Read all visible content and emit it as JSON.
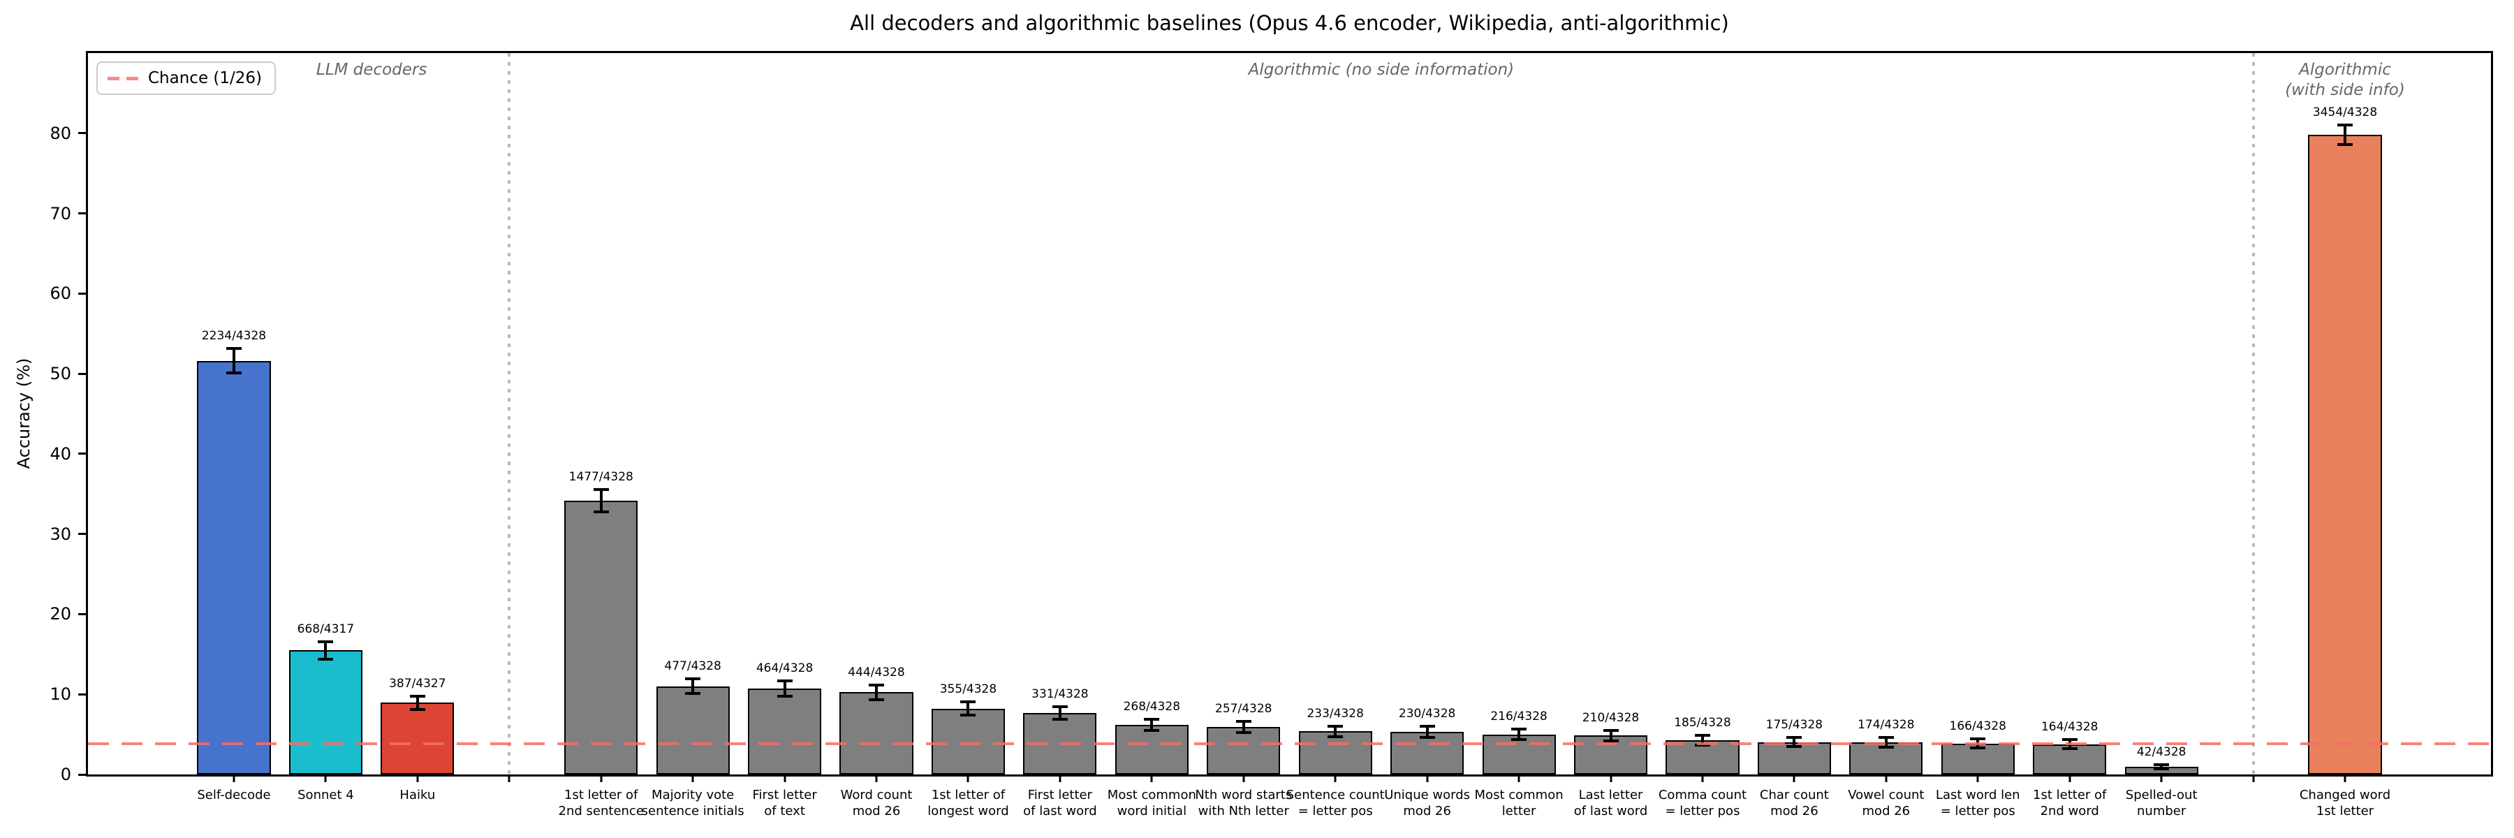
{
  "title": "All decoders and algorithmic baselines (Opus 4.6 encoder, Wikipedia, anti-algorithmic)",
  "ylabel": "Accuracy (%)",
  "legend": {
    "label": "Chance (1/26)",
    "color": "#f46e66",
    "style": "dashed",
    "position": "upper left"
  },
  "chart_data": {
    "type": "bar",
    "title": "All decoders and algorithmic baselines (Opus 4.6 encoder, Wikipedia, anti-algorithmic)",
    "xlabel": "",
    "ylabel": "Accuracy (%)",
    "ylim": [
      0,
      90
    ],
    "yticks": [
      0,
      10,
      20,
      30,
      40,
      50,
      60,
      70,
      80
    ],
    "grid": false,
    "bar_width": 0.8,
    "xlim_slots": [
      -1.59,
      24.59
    ],
    "chance_line": {
      "value": 3.846,
      "label": "Chance (1/26)",
      "color": "#f46e66"
    },
    "edge_color": "#000000",
    "gray_color": "#7f7f7f",
    "groups": [
      {
        "label_lines": [
          "LLM decoders"
        ],
        "label_slot": 1.5,
        "bars": [
          {
            "label_lines": [
              "Self-decode"
            ],
            "count": "2234/4328",
            "value": 51.62,
            "err": 1.49,
            "color": "#4673cb"
          },
          {
            "label_lines": [
              "Sonnet 4"
            ],
            "count": "668/4317",
            "value": 15.47,
            "err": 1.08,
            "color": "#1abdcd"
          },
          {
            "label_lines": [
              "Haiku"
            ],
            "count": "387/4327",
            "value": 8.94,
            "err": 0.85,
            "color": "#de4433"
          }
        ]
      },
      {
        "label_lines": [
          "Algorithmic (no side information)"
        ],
        "label_slot": 12.5,
        "bars": [
          {
            "label_lines": [
              "1st letter of",
              "2nd sentence"
            ],
            "count": "1477/4328",
            "value": 34.13,
            "err": 1.41,
            "color": "#7f7f7f"
          },
          {
            "label_lines": [
              "Majority vote",
              "sentence initials"
            ],
            "count": "477/4328",
            "value": 11.02,
            "err": 0.93,
            "color": "#7f7f7f"
          },
          {
            "label_lines": [
              "First letter",
              "of text"
            ],
            "count": "464/4328",
            "value": 10.72,
            "err": 0.92,
            "color": "#7f7f7f"
          },
          {
            "label_lines": [
              "Word count",
              "mod 26"
            ],
            "count": "444/4328",
            "value": 10.26,
            "err": 0.9,
            "color": "#7f7f7f"
          },
          {
            "label_lines": [
              "1st letter of",
              "longest word"
            ],
            "count": "355/4328",
            "value": 8.2,
            "err": 0.82,
            "color": "#7f7f7f"
          },
          {
            "label_lines": [
              "First letter",
              "of last word"
            ],
            "count": "331/4328",
            "value": 7.65,
            "err": 0.79,
            "color": "#7f7f7f"
          },
          {
            "label_lines": [
              "Most common",
              "word initial"
            ],
            "count": "268/4328",
            "value": 6.19,
            "err": 0.72,
            "color": "#7f7f7f"
          },
          {
            "label_lines": [
              "Nth word starts",
              "with Nth letter"
            ],
            "count": "257/4328",
            "value": 5.94,
            "err": 0.7,
            "color": "#7f7f7f"
          },
          {
            "label_lines": [
              "Sentence count",
              "= letter pos"
            ],
            "count": "233/4328",
            "value": 5.38,
            "err": 0.67,
            "color": "#7f7f7f"
          },
          {
            "label_lines": [
              "Unique words",
              "mod 26"
            ],
            "count": "230/4328",
            "value": 5.31,
            "err": 0.67,
            "color": "#7f7f7f"
          },
          {
            "label_lines": [
              "Most common",
              "letter"
            ],
            "count": "216/4328",
            "value": 4.99,
            "err": 0.65,
            "color": "#7f7f7f"
          },
          {
            "label_lines": [
              "Last letter",
              "of last word"
            ],
            "count": "210/4328",
            "value": 4.85,
            "err": 0.64,
            "color": "#7f7f7f"
          },
          {
            "label_lines": [
              "Comma count",
              "= letter pos"
            ],
            "count": "185/4328",
            "value": 4.27,
            "err": 0.6,
            "color": "#7f7f7f"
          },
          {
            "label_lines": [
              "Char count",
              "mod 26"
            ],
            "count": "175/4328",
            "value": 4.04,
            "err": 0.59,
            "color": "#7f7f7f"
          },
          {
            "label_lines": [
              "Vowel count",
              "mod 26"
            ],
            "count": "174/4328",
            "value": 4.02,
            "err": 0.59,
            "color": "#7f7f7f"
          },
          {
            "label_lines": [
              "Last word len",
              "= letter pos"
            ],
            "count": "166/4328",
            "value": 3.84,
            "err": 0.57,
            "color": "#7f7f7f"
          },
          {
            "label_lines": [
              "1st letter of",
              "2nd word"
            ],
            "count": "164/4328",
            "value": 3.79,
            "err": 0.57,
            "color": "#7f7f7f"
          },
          {
            "label_lines": [
              "Spelled-out",
              "number"
            ],
            "count": "42/4328",
            "value": 0.97,
            "err": 0.29,
            "color": "#7f7f7f"
          }
        ]
      },
      {
        "label_lines": [
          "Algorithmic",
          "(with side info)"
        ],
        "label_slot": 23,
        "bars": [
          {
            "label_lines": [
              "Changed word",
              "1st letter"
            ],
            "count": "3454/4328",
            "value": 79.81,
            "err": 1.2,
            "color": "#e8805c"
          }
        ]
      }
    ]
  }
}
